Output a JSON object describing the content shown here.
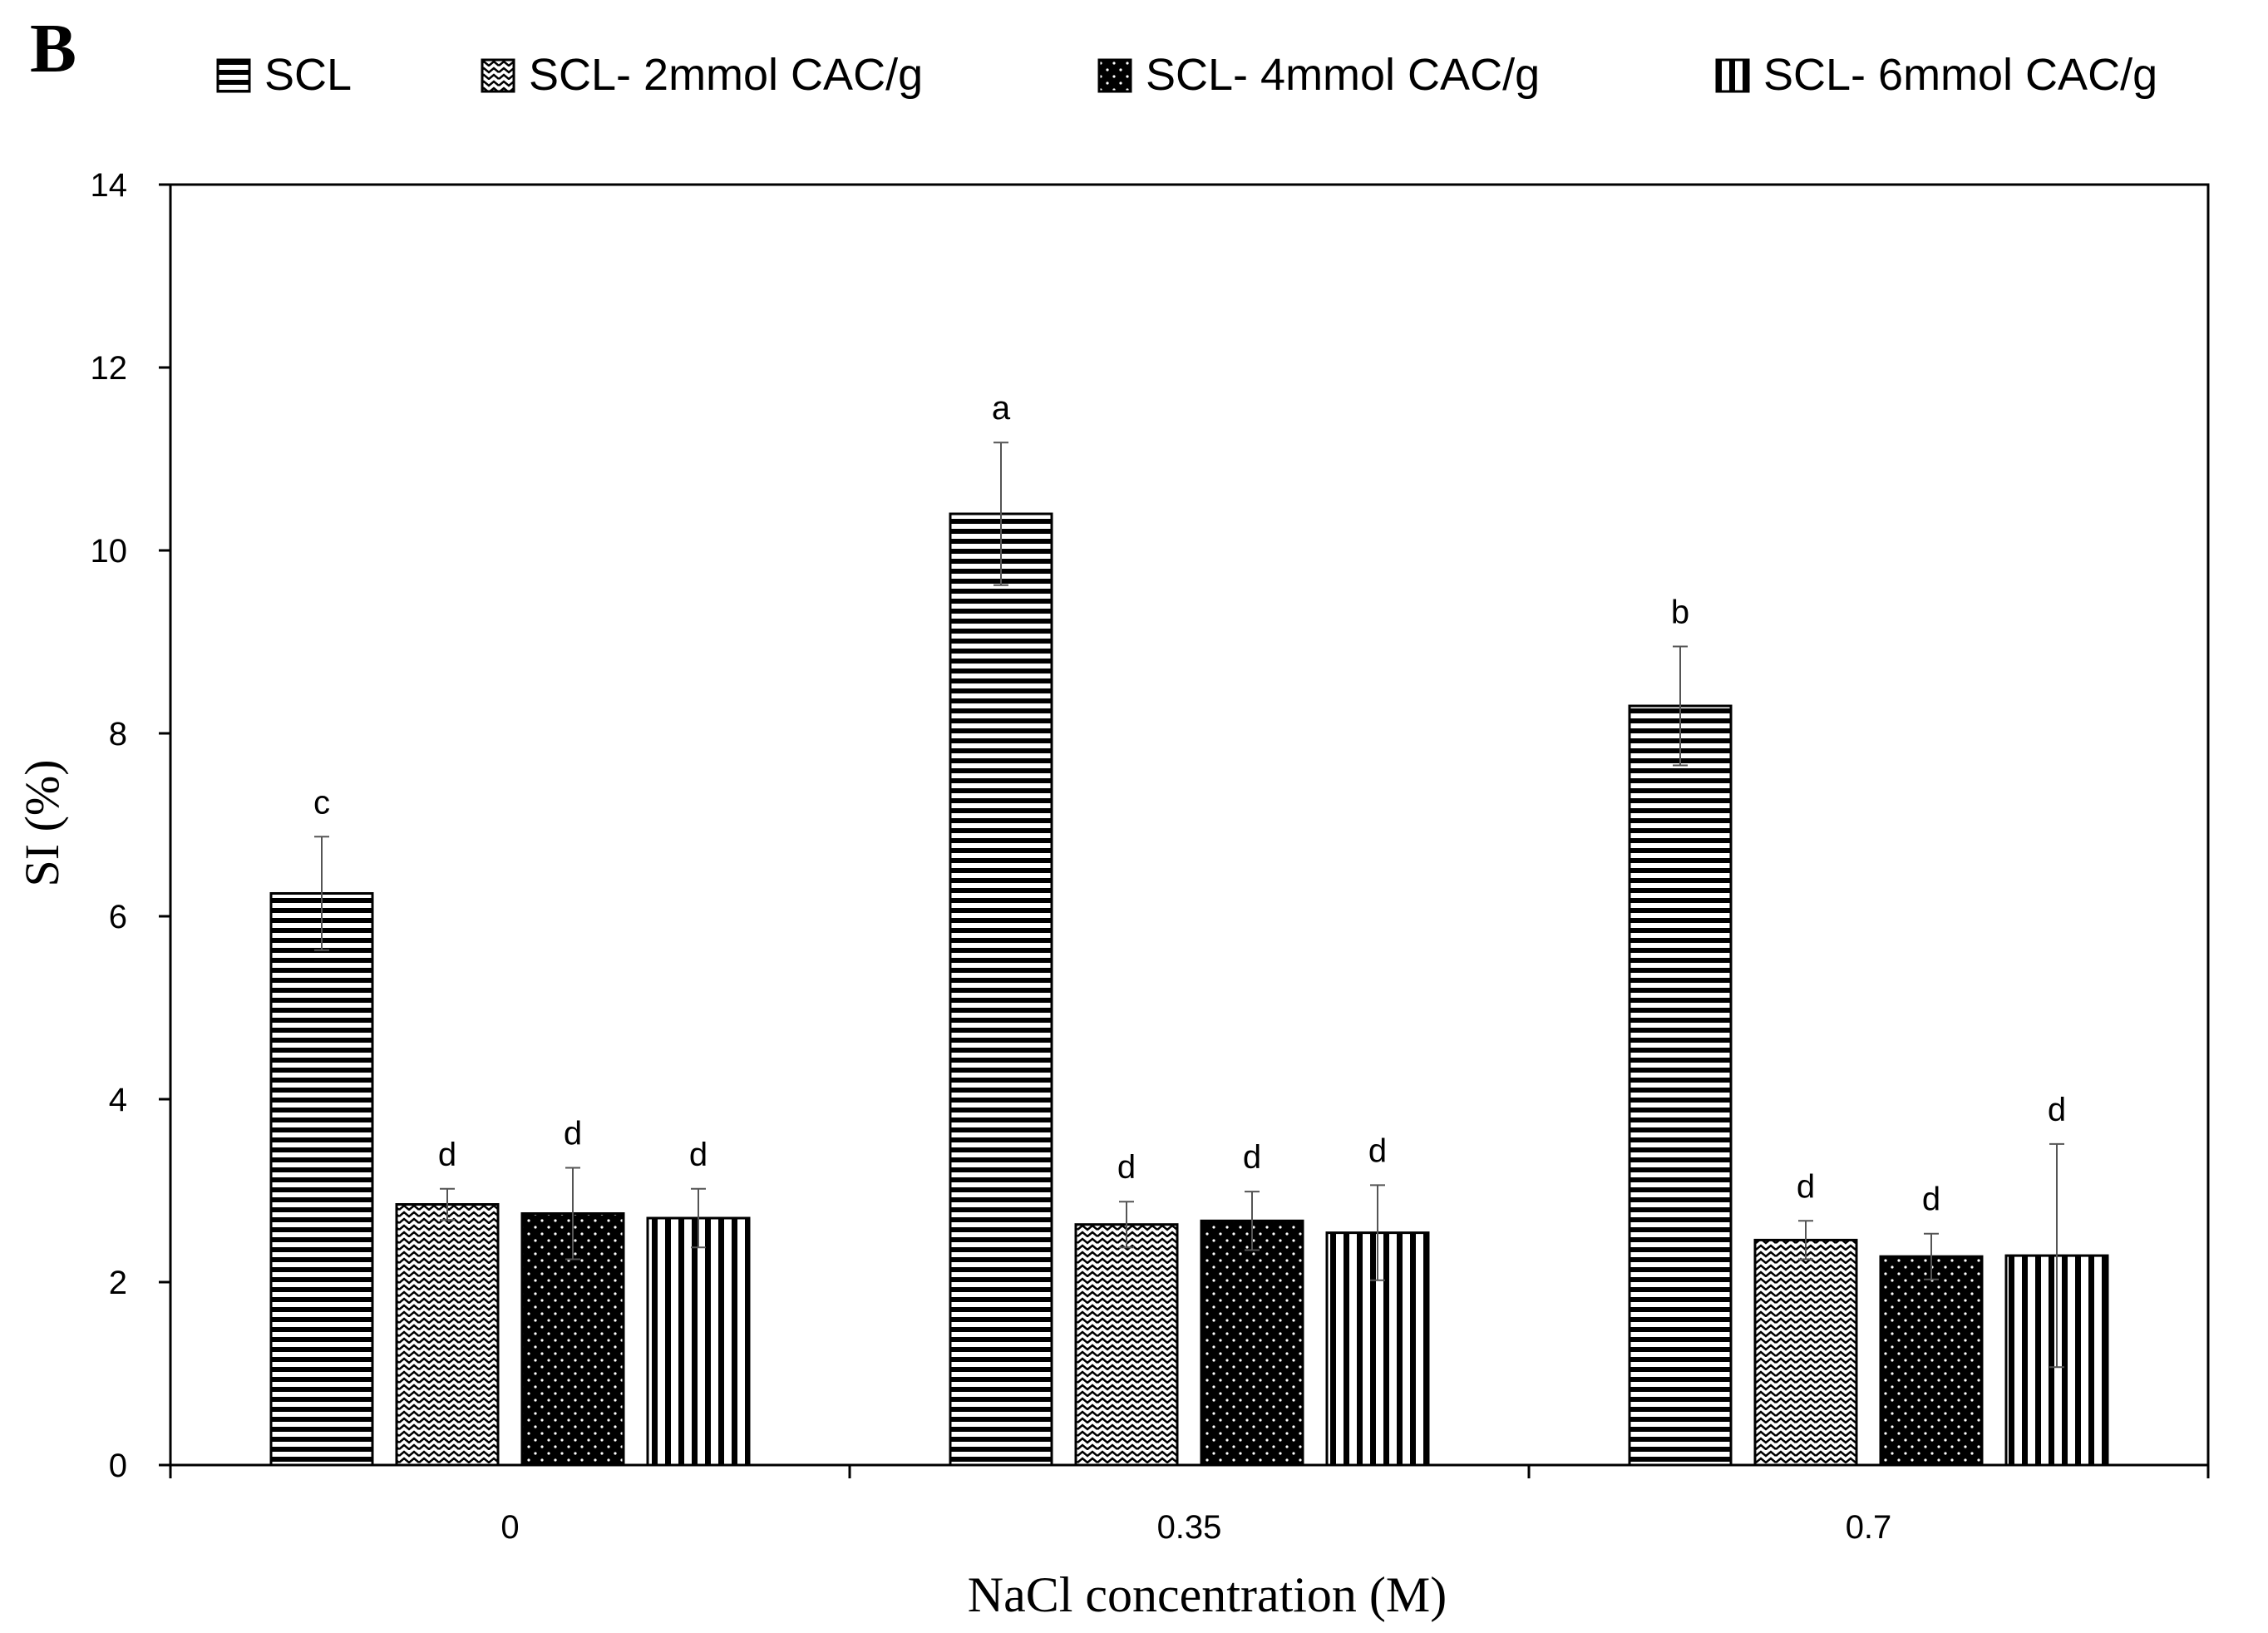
{
  "panel_label": "B",
  "chart_data": {
    "type": "bar",
    "title": "",
    "xlabel": "NaCl concentration (M)",
    "ylabel": "SI (%)",
    "categories": [
      "0",
      "0.35",
      "0.7"
    ],
    "ylim": [
      0,
      14
    ],
    "yticks": [
      0,
      2,
      4,
      6,
      8,
      10,
      12,
      14
    ],
    "grid": false,
    "legend_position": "top",
    "series": [
      {
        "name": "SCL",
        "pattern": "horizontal-lines",
        "values": [
          6.25,
          10.4,
          8.3
        ],
        "errors": [
          0.62,
          0.78,
          0.65
        ],
        "labels": [
          "c",
          "a",
          "b"
        ]
      },
      {
        "name": "SCL- 2mmol CAC/g",
        "pattern": "zigzag",
        "values": [
          2.85,
          2.63,
          2.46
        ],
        "errors": [
          0.17,
          0.25,
          0.21
        ],
        "labels": [
          "d",
          "d",
          "d"
        ]
      },
      {
        "name": "SCL- 4mmol CAC/g",
        "pattern": "dots",
        "values": [
          2.75,
          2.67,
          2.28
        ],
        "errors": [
          0.5,
          0.32,
          0.25
        ],
        "labels": [
          "d",
          "d",
          "d"
        ]
      },
      {
        "name": "SCL- 6mmol CAC/g",
        "pattern": "vertical-lines",
        "values": [
          2.7,
          2.54,
          2.29
        ],
        "errors": [
          0.32,
          0.52,
          1.22
        ],
        "labels": [
          "d",
          "d",
          "d"
        ]
      }
    ]
  }
}
